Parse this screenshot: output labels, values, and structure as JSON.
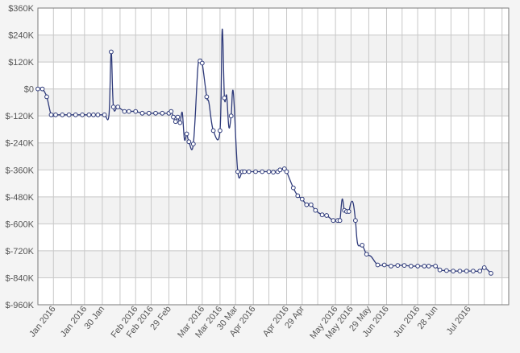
{
  "colors": {
    "background": "#f4f4f4",
    "plot_band_light": "#ffffff",
    "plot_band_dark": "#f2f2f2",
    "grid": "#c8c8c8",
    "frame": "#7a7a7a",
    "line": "#2e3a7a",
    "marker_fill": "#ffffff"
  },
  "chart_data": {
    "type": "line",
    "title": "",
    "xlabel": "",
    "ylabel": "",
    "x_axis": "dates",
    "xlim": [
      "2016-01-01",
      "2016-07-31"
    ],
    "ylim": [
      -960000,
      360000
    ],
    "grid": true,
    "legend": "none",
    "yticks": [
      {
        "value": 360000,
        "label": "$360K"
      },
      {
        "value": 240000,
        "label": "$240K"
      },
      {
        "value": 120000,
        "label": "$120K"
      },
      {
        "value": 0,
        "label": "$0"
      },
      {
        "value": -120000,
        "label": "$-120K"
      },
      {
        "value": -240000,
        "label": "$-240K"
      },
      {
        "value": -360000,
        "label": "$-360K"
      },
      {
        "value": -480000,
        "label": "$-480K"
      },
      {
        "value": -600000,
        "label": "$-600K"
      },
      {
        "value": -720000,
        "label": "$-720K"
      },
      {
        "value": -840000,
        "label": "$-840K"
      },
      {
        "value": -960000,
        "label": "$-960K"
      }
    ],
    "xticks": [
      {
        "date": "2016-01-08",
        "label": "Jan 2016"
      },
      {
        "date": "2016-01-16",
        "label": ""
      },
      {
        "date": "2016-01-22",
        "label": "Jan 2016"
      },
      {
        "date": "2016-01-30",
        "label": "30 Jan"
      },
      {
        "date": "2016-02-07",
        "label": ""
      },
      {
        "date": "2016-02-14",
        "label": "Feb 2016"
      },
      {
        "date": "2016-02-21",
        "label": "Feb 2016"
      },
      {
        "date": "2016-02-29",
        "label": "29 Feb"
      },
      {
        "date": "2016-03-08",
        "label": ""
      },
      {
        "date": "2016-03-15",
        "label": "Mar 2016"
      },
      {
        "date": "2016-03-23",
        "label": "Mar 2016"
      },
      {
        "date": "2016-03-30",
        "label": "30 Mar"
      },
      {
        "date": "2016-04-07",
        "label": "Apr 2016"
      },
      {
        "date": "2016-04-14",
        "label": ""
      },
      {
        "date": "2016-04-22",
        "label": "Apr 2016"
      },
      {
        "date": "2016-04-29",
        "label": "29 Apr"
      },
      {
        "date": "2016-05-06",
        "label": ""
      },
      {
        "date": "2016-05-14",
        "label": "May 2016"
      },
      {
        "date": "2016-05-21",
        "label": "May 2016"
      },
      {
        "date": "2016-05-29",
        "label": "29 May"
      },
      {
        "date": "2016-06-06",
        "label": "Jun 2016"
      },
      {
        "date": "2016-06-13",
        "label": ""
      },
      {
        "date": "2016-06-20",
        "label": "Jun 2016"
      },
      {
        "date": "2016-06-28",
        "label": "28 Jun"
      },
      {
        "date": "2016-07-05",
        "label": ""
      },
      {
        "date": "2016-07-13",
        "label": "Jul 2016"
      },
      {
        "date": "2016-07-20",
        "label": ""
      },
      {
        "date": "2016-07-28",
        "label": ""
      }
    ],
    "series": [
      {
        "points": [
          {
            "x": "2016-01-01",
            "y": 0,
            "marker": true
          },
          {
            "x": "2016-01-03",
            "y": 0,
            "marker": true
          },
          {
            "x": "2016-01-05",
            "y": -35000,
            "marker": true
          },
          {
            "x": "2016-01-07",
            "y": -115000,
            "marker": true
          },
          {
            "x": "2016-01-09",
            "y": -115000,
            "marker": true
          },
          {
            "x": "2016-01-12",
            "y": -115000,
            "marker": true
          },
          {
            "x": "2016-01-15",
            "y": -115000,
            "marker": true
          },
          {
            "x": "2016-01-18",
            "y": -115000,
            "marker": true
          },
          {
            "x": "2016-01-21",
            "y": -115000,
            "marker": true
          },
          {
            "x": "2016-01-24",
            "y": -115000,
            "marker": true
          },
          {
            "x": "2016-01-26",
            "y": -115000,
            "marker": true
          },
          {
            "x": "2016-01-28",
            "y": -115000,
            "marker": true
          },
          {
            "x": "2016-01-31",
            "y": -115000,
            "marker": true
          },
          {
            "x": "2016-02-02",
            "y": -115000,
            "marker": false
          },
          {
            "x": "2016-02-03",
            "y": 165000,
            "marker": true
          },
          {
            "x": "2016-02-04",
            "y": -80000,
            "marker": true
          },
          {
            "x": "2016-02-06",
            "y": -80000,
            "marker": true
          },
          {
            "x": "2016-02-09",
            "y": -100000,
            "marker": true
          },
          {
            "x": "2016-02-11",
            "y": -100000,
            "marker": true
          },
          {
            "x": "2016-02-14",
            "y": -100000,
            "marker": true
          },
          {
            "x": "2016-02-17",
            "y": -108000,
            "marker": true
          },
          {
            "x": "2016-02-20",
            "y": -108000,
            "marker": true
          },
          {
            "x": "2016-02-23",
            "y": -108000,
            "marker": true
          },
          {
            "x": "2016-02-26",
            "y": -108000,
            "marker": true
          },
          {
            "x": "2016-02-29",
            "y": -108000,
            "marker": true
          },
          {
            "x": "2016-03-01",
            "y": -100000,
            "marker": true
          },
          {
            "x": "2016-03-02",
            "y": -125000,
            "marker": true
          },
          {
            "x": "2016-03-03",
            "y": -145000,
            "marker": true
          },
          {
            "x": "2016-03-04",
            "y": -125000,
            "marker": true
          },
          {
            "x": "2016-03-05",
            "y": -150000,
            "marker": true
          },
          {
            "x": "2016-03-06",
            "y": -105000,
            "marker": false
          },
          {
            "x": "2016-03-07",
            "y": -225000,
            "marker": false
          },
          {
            "x": "2016-03-08",
            "y": -200000,
            "marker": true
          },
          {
            "x": "2016-03-09",
            "y": -235000,
            "marker": true
          },
          {
            "x": "2016-03-11",
            "y": -245000,
            "marker": true
          },
          {
            "x": "2016-03-13",
            "y": 90000,
            "marker": false
          },
          {
            "x": "2016-03-14",
            "y": 125000,
            "marker": true
          },
          {
            "x": "2016-03-15",
            "y": 115000,
            "marker": true
          },
          {
            "x": "2016-03-17",
            "y": -35000,
            "marker": true
          },
          {
            "x": "2016-03-18",
            "y": -60000,
            "marker": false
          },
          {
            "x": "2016-03-20",
            "y": -185000,
            "marker": true
          },
          {
            "x": "2016-03-23",
            "y": -185000,
            "marker": true
          },
          {
            "x": "2016-03-24",
            "y": 265000,
            "marker": false
          },
          {
            "x": "2016-03-25",
            "y": -40000,
            "marker": true
          },
          {
            "x": "2016-03-26",
            "y": -30000,
            "marker": false
          },
          {
            "x": "2016-03-27",
            "y": -170000,
            "marker": false
          },
          {
            "x": "2016-03-28",
            "y": -120000,
            "marker": true
          },
          {
            "x": "2016-03-29",
            "y": -15000,
            "marker": false
          },
          {
            "x": "2016-03-31",
            "y": -368000,
            "marker": true
          },
          {
            "x": "2016-04-02",
            "y": -368000,
            "marker": true
          },
          {
            "x": "2016-04-03",
            "y": -368000,
            "marker": true
          },
          {
            "x": "2016-04-05",
            "y": -368000,
            "marker": true
          },
          {
            "x": "2016-04-08",
            "y": -368000,
            "marker": true
          },
          {
            "x": "2016-04-11",
            "y": -368000,
            "marker": true
          },
          {
            "x": "2016-04-14",
            "y": -368000,
            "marker": true
          },
          {
            "x": "2016-04-16",
            "y": -370000,
            "marker": true
          },
          {
            "x": "2016-04-18",
            "y": -368000,
            "marker": true
          },
          {
            "x": "2016-04-19",
            "y": -360000,
            "marker": true
          },
          {
            "x": "2016-04-21",
            "y": -355000,
            "marker": true
          },
          {
            "x": "2016-04-22",
            "y": -368000,
            "marker": true
          },
          {
            "x": "2016-04-25",
            "y": -440000,
            "marker": true
          },
          {
            "x": "2016-04-27",
            "y": -475000,
            "marker": true
          },
          {
            "x": "2016-04-29",
            "y": -490000,
            "marker": true
          },
          {
            "x": "2016-05-01",
            "y": -515000,
            "marker": true
          },
          {
            "x": "2016-05-03",
            "y": -515000,
            "marker": true
          },
          {
            "x": "2016-05-05",
            "y": -540000,
            "marker": true
          },
          {
            "x": "2016-05-08",
            "y": -560000,
            "marker": true
          },
          {
            "x": "2016-05-10",
            "y": -563000,
            "marker": true
          },
          {
            "x": "2016-05-13",
            "y": -585000,
            "marker": true
          },
          {
            "x": "2016-05-15",
            "y": -585000,
            "marker": true
          },
          {
            "x": "2016-05-16",
            "y": -585000,
            "marker": true
          },
          {
            "x": "2016-05-17",
            "y": -490000,
            "marker": false
          },
          {
            "x": "2016-05-18",
            "y": -540000,
            "marker": true
          },
          {
            "x": "2016-05-19",
            "y": -545000,
            "marker": true
          },
          {
            "x": "2016-05-20",
            "y": -545000,
            "marker": true
          },
          {
            "x": "2016-05-21",
            "y": -505000,
            "marker": false
          },
          {
            "x": "2016-05-22",
            "y": -510000,
            "marker": false
          },
          {
            "x": "2016-05-23",
            "y": -585000,
            "marker": true
          },
          {
            "x": "2016-05-24",
            "y": -690000,
            "marker": false
          },
          {
            "x": "2016-05-26",
            "y": -695000,
            "marker": true
          },
          {
            "x": "2016-05-28",
            "y": -735000,
            "marker": true
          },
          {
            "x": "2016-05-30",
            "y": -745000,
            "marker": false
          },
          {
            "x": "2016-06-02",
            "y": -783000,
            "marker": true
          },
          {
            "x": "2016-06-05",
            "y": -783000,
            "marker": true
          },
          {
            "x": "2016-06-08",
            "y": -788000,
            "marker": true
          },
          {
            "x": "2016-06-11",
            "y": -785000,
            "marker": true
          },
          {
            "x": "2016-06-14",
            "y": -785000,
            "marker": true
          },
          {
            "x": "2016-06-17",
            "y": -788000,
            "marker": true
          },
          {
            "x": "2016-06-20",
            "y": -788000,
            "marker": true
          },
          {
            "x": "2016-06-23",
            "y": -788000,
            "marker": true
          },
          {
            "x": "2016-06-25",
            "y": -788000,
            "marker": true
          },
          {
            "x": "2016-06-28",
            "y": -788000,
            "marker": true
          },
          {
            "x": "2016-06-30",
            "y": -805000,
            "marker": true
          },
          {
            "x": "2016-07-03",
            "y": -808000,
            "marker": true
          },
          {
            "x": "2016-07-06",
            "y": -810000,
            "marker": true
          },
          {
            "x": "2016-07-09",
            "y": -810000,
            "marker": true
          },
          {
            "x": "2016-07-12",
            "y": -810000,
            "marker": true
          },
          {
            "x": "2016-07-15",
            "y": -810000,
            "marker": true
          },
          {
            "x": "2016-07-18",
            "y": -810000,
            "marker": true
          },
          {
            "x": "2016-07-20",
            "y": -795000,
            "marker": true
          },
          {
            "x": "2016-07-23",
            "y": -820000,
            "marker": true
          }
        ]
      }
    ]
  }
}
